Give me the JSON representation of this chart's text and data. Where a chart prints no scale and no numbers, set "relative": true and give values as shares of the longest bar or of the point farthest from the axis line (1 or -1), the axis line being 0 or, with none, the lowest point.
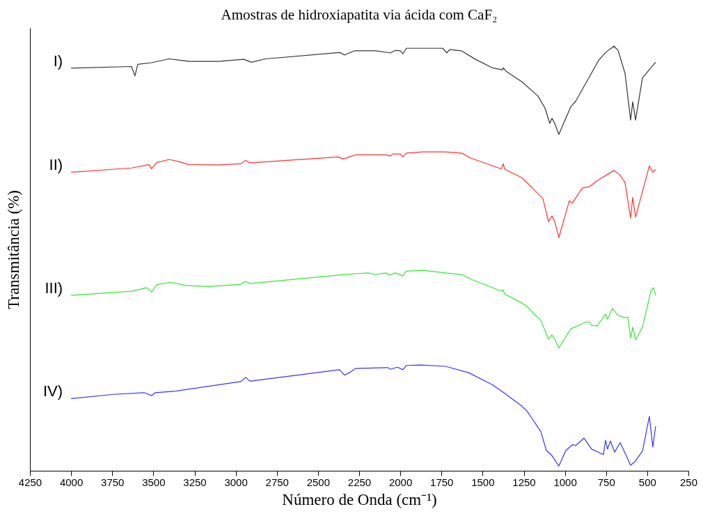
{
  "chart_data": {
    "type": "line",
    "title": "Amostras de hidroxiapatita via ácida com CaF₂",
    "xlabel": "Número de Onda (cm⁻¹)",
    "ylabel": "Transmitância (%)",
    "relative": true,
    "legend": false,
    "xlim": [
      4250,
      250
    ],
    "xticks": [
      4250,
      4000,
      3750,
      3500,
      3250,
      3000,
      2750,
      2500,
      2250,
      2000,
      1750,
      1500,
      1250,
      1000,
      750,
      500,
      250
    ],
    "series": [
      {
        "name": "I)",
        "color": "#333333",
        "x": [
          4000,
          3633,
          3612,
          3595,
          3510,
          3404,
          3286,
          3104,
          2952,
          2905,
          2817,
          2368,
          2339,
          2280,
          2153,
          2060,
          2030,
          2001,
          1984,
          1963,
          1743,
          1717,
          1700,
          1654,
          1628,
          1544,
          1442,
          1379,
          1375,
          1358,
          1261,
          1163,
          1121,
          1092,
          1079,
          1062,
          1037,
          965,
          935,
          796,
          753,
          702,
          677,
          635,
          601,
          588,
          571,
          529,
          478,
          449
        ],
        "values": [
          0.948,
          0.952,
          0.93,
          0.957,
          0.961,
          0.97,
          0.964,
          0.964,
          0.969,
          0.962,
          0.97,
          0.985,
          0.979,
          0.989,
          0.989,
          0.984,
          0.99,
          0.989,
          0.982,
          0.995,
          0.995,
          0.984,
          0.992,
          0.99,
          0.989,
          0.969,
          0.949,
          0.944,
          0.949,
          0.941,
          0.916,
          0.882,
          0.854,
          0.818,
          0.83,
          0.818,
          0.792,
          0.857,
          0.87,
          0.966,
          0.985,
          1.0,
          0.99,
          0.936,
          0.826,
          0.869,
          0.826,
          0.925,
          0.949,
          0.962
        ]
      },
      {
        "name": "II)",
        "color": "#ff3030",
        "x": [
          4000,
          3633,
          3527,
          3510,
          3480,
          3404,
          3345,
          3286,
          3104,
          2969,
          2939,
          2914,
          2377,
          2347,
          2271,
          2089,
          2060,
          2047,
          2001,
          1984,
          1963,
          1865,
          1726,
          1628,
          1569,
          1387,
          1375,
          1366,
          1261,
          1231,
          1134,
          1100,
          1079,
          1062,
          1037,
          973,
          956,
          893,
          851,
          796,
          741,
          702,
          669,
          635,
          601,
          588,
          571,
          487,
          466,
          449
        ],
        "values": [
          0.703,
          0.713,
          0.721,
          0.711,
          0.726,
          0.733,
          0.728,
          0.721,
          0.72,
          0.723,
          0.731,
          0.725,
          0.739,
          0.734,
          0.744,
          0.744,
          0.741,
          0.746,
          0.746,
          0.739,
          0.748,
          0.751,
          0.751,
          0.748,
          0.736,
          0.711,
          0.723,
          0.71,
          0.69,
          0.679,
          0.641,
          0.587,
          0.6,
          0.587,
          0.549,
          0.636,
          0.63,
          0.666,
          0.669,
          0.685,
          0.698,
          0.707,
          0.698,
          0.679,
          0.595,
          0.644,
          0.597,
          0.718,
          0.703,
          0.71
        ]
      },
      {
        "name": "III)",
        "color": "#33e633",
        "x": [
          4000,
          3633,
          3540,
          3510,
          3480,
          3396,
          3298,
          3164,
          2969,
          2939,
          2914,
          2347,
          2195,
          2153,
          2089,
          2060,
          2030,
          1984,
          1963,
          1865,
          1726,
          1628,
          1557,
          1387,
          1375,
          1366,
          1261,
          1231,
          1146,
          1100,
          1079,
          1062,
          1037,
          965,
          880,
          851,
          838,
          804,
          753,
          741,
          711,
          677,
          639,
          618,
          601,
          588,
          571,
          529,
          478,
          462,
          449
        ],
        "values": [
          0.413,
          0.423,
          0.431,
          0.421,
          0.438,
          0.444,
          0.436,
          0.434,
          0.439,
          0.446,
          0.441,
          0.462,
          0.466,
          0.462,
          0.466,
          0.461,
          0.466,
          0.459,
          0.47,
          0.472,
          0.466,
          0.462,
          0.449,
          0.423,
          0.426,
          0.416,
          0.395,
          0.387,
          0.354,
          0.31,
          0.32,
          0.31,
          0.289,
          0.334,
          0.349,
          0.351,
          0.343,
          0.341,
          0.369,
          0.357,
          0.382,
          0.366,
          0.361,
          0.362,
          0.313,
          0.338,
          0.308,
          0.338,
          0.423,
          0.431,
          0.413
        ]
      },
      {
        "name": "IV)",
        "color": "#3333ff",
        "x": [
          4000,
          3739,
          3557,
          3510,
          3489,
          3375,
          2969,
          2939,
          2914,
          2368,
          2339,
          2309,
          2271,
          2077,
          2060,
          2018,
          1984,
          1963,
          1878,
          1726,
          1586,
          1442,
          1375,
          1261,
          1231,
          1146,
          1113,
          1079,
          1037,
          994,
          952,
          935,
          884,
          838,
          766,
          753,
          741,
          724,
          698,
          664,
          601,
          576,
          529,
          487,
          466,
          449
        ],
        "values": [
          0.17,
          0.18,
          0.184,
          0.177,
          0.184,
          0.187,
          0.21,
          0.22,
          0.211,
          0.238,
          0.225,
          0.231,
          0.241,
          0.243,
          0.239,
          0.244,
          0.238,
          0.248,
          0.249,
          0.246,
          0.231,
          0.203,
          0.185,
          0.152,
          0.141,
          0.092,
          0.048,
          0.036,
          0.011,
          0.048,
          0.062,
          0.059,
          0.077,
          0.051,
          0.038,
          0.072,
          0.051,
          0.07,
          0.044,
          0.066,
          0.013,
          0.021,
          0.046,
          0.128,
          0.056,
          0.105
        ]
      }
    ]
  }
}
